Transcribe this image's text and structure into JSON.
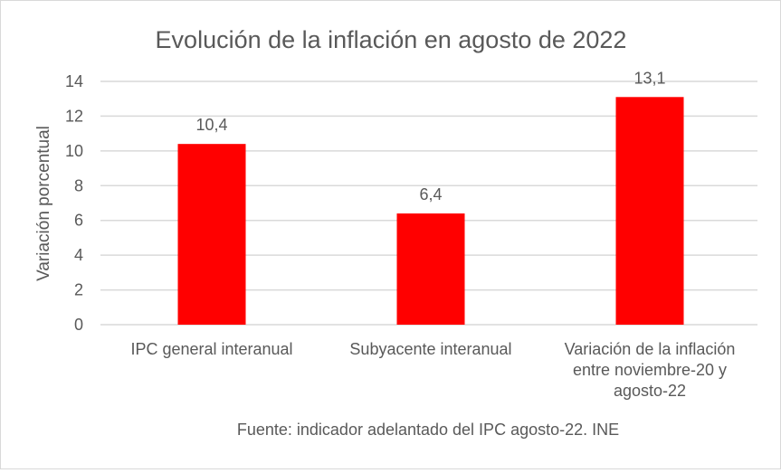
{
  "chart_data": {
    "type": "bar",
    "title": "Evolución de la inflación en agosto de 2022",
    "ylabel": "Variación porcentual",
    "xlabel": "",
    "source": "Fuente: indicador adelantado del IPC agosto-22. INE",
    "categories": [
      [
        "IPC general interanual"
      ],
      [
        "Subyacente interanual"
      ],
      [
        "Variación de la inflación",
        "entre noviembre-20 y",
        "agosto-22"
      ]
    ],
    "values": [
      10.4,
      6.4,
      13.1
    ],
    "data_labels": [
      "10,4",
      "6,4",
      "13,1"
    ],
    "ylim": [
      0,
      14
    ],
    "yticks": [
      0,
      2,
      4,
      6,
      8,
      10,
      12,
      14
    ],
    "grid": true,
    "bar_color": "#ff0000",
    "grid_color": "#d9d9d9",
    "text_color": "#595959"
  }
}
